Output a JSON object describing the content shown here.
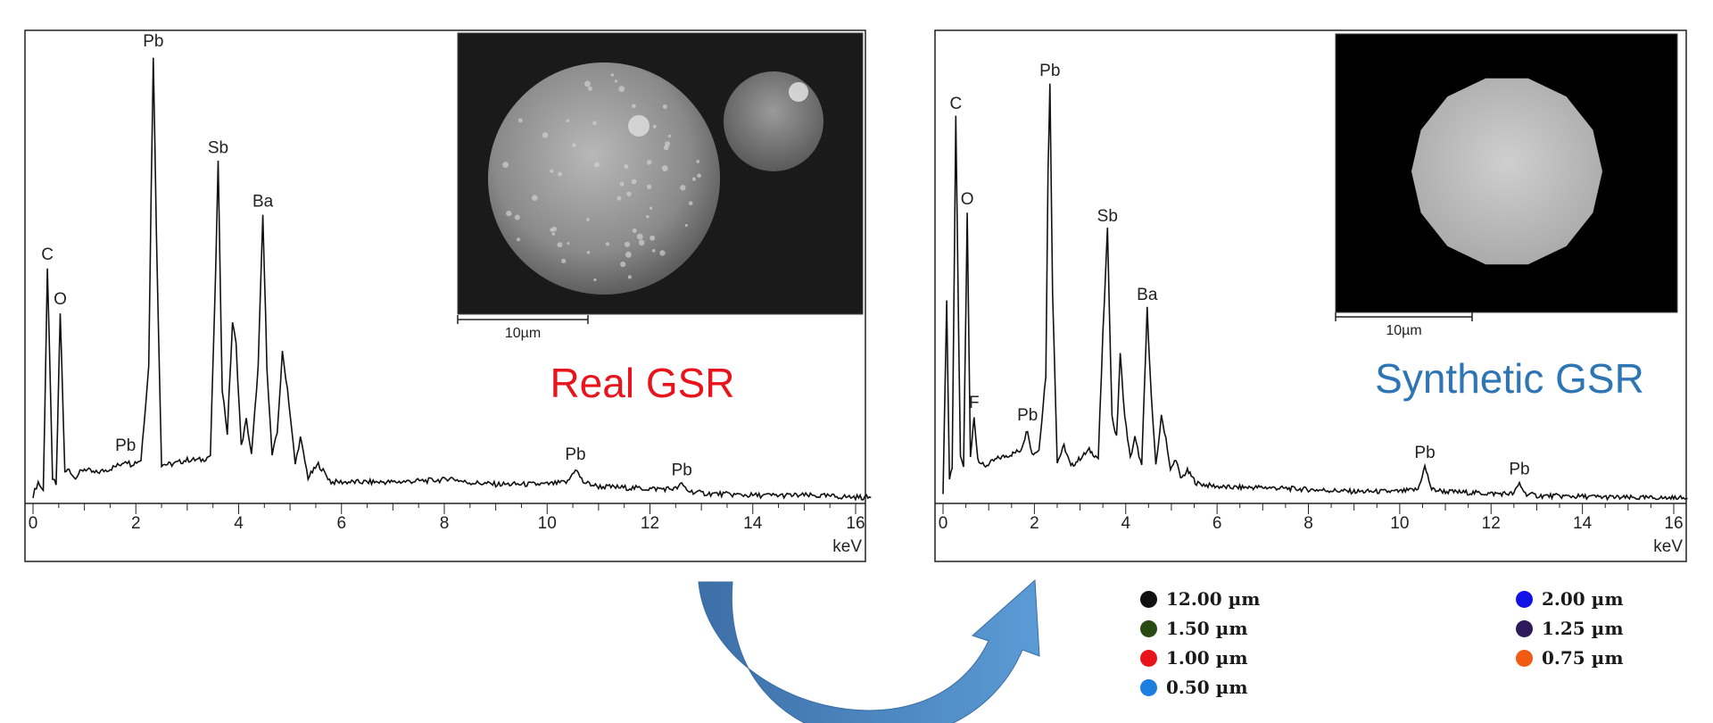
{
  "chart_data": [
    {
      "type": "line",
      "title": "Real GSR",
      "title_color": "#e8141b",
      "xlabel": "keV",
      "ylabel": "",
      "xlim": [
        0,
        16.3
      ],
      "ylim": [
        0,
        1.0
      ],
      "grid": false,
      "x_ticks": [
        "0",
        "2",
        "4",
        "6",
        "8",
        "10",
        "12",
        "14",
        "16"
      ],
      "peaks": [
        {
          "label": "C",
          "x": 0.28,
          "y": 0.52
        },
        {
          "label": "O",
          "x": 0.53,
          "y": 0.42
        },
        {
          "label": "Pb",
          "x": 1.8,
          "y": 0.09
        },
        {
          "label": "Pb",
          "x": 2.34,
          "y": 1.0
        },
        {
          "label": "Sb",
          "x": 3.6,
          "y": 0.76
        },
        {
          "label": "Ba",
          "x": 4.47,
          "y": 0.64
        },
        {
          "label": "Pb",
          "x": 10.55,
          "y": 0.07
        },
        {
          "label": "Pb",
          "x": 12.62,
          "y": 0.035
        }
      ],
      "series": [
        {
          "x": [
            0,
            0.1,
            0.2,
            0.28,
            0.38,
            0.45,
            0.53,
            0.62,
            0.7,
            0.8,
            1.0,
            1.2,
            1.5,
            1.7,
            1.8,
            1.9,
            2.1,
            2.25,
            2.3,
            2.34,
            2.4,
            2.5,
            2.7,
            3.0,
            3.3,
            3.45,
            3.55,
            3.6,
            3.68,
            3.78,
            3.88,
            3.95,
            4.05,
            4.15,
            4.25,
            4.38,
            4.47,
            4.55,
            4.65,
            4.75,
            4.85,
            4.95,
            5.1,
            5.2,
            5.35,
            5.55,
            5.8,
            6.2,
            7,
            8.0,
            8.1,
            8.4,
            9,
            10,
            10.4,
            10.55,
            10.7,
            11,
            12,
            12.5,
            12.62,
            12.75,
            13,
            14,
            15,
            16.3
          ],
          "y": [
            0.01,
            0.04,
            0.02,
            0.52,
            0.05,
            0.03,
            0.42,
            0.06,
            0.07,
            0.05,
            0.07,
            0.06,
            0.07,
            0.08,
            0.09,
            0.08,
            0.09,
            0.3,
            0.7,
            1.0,
            0.6,
            0.08,
            0.08,
            0.09,
            0.09,
            0.1,
            0.5,
            0.76,
            0.25,
            0.15,
            0.4,
            0.35,
            0.12,
            0.18,
            0.1,
            0.3,
            0.64,
            0.3,
            0.1,
            0.15,
            0.33,
            0.25,
            0.08,
            0.14,
            0.05,
            0.08,
            0.04,
            0.04,
            0.04,
            0.045,
            0.05,
            0.04,
            0.035,
            0.035,
            0.04,
            0.07,
            0.04,
            0.03,
            0.025,
            0.025,
            0.035,
            0.02,
            0.015,
            0.01,
            0.01,
            0.005
          ]
        }
      ],
      "inset": {
        "scale_label": "10µm",
        "description": "SEM image"
      }
    },
    {
      "type": "line",
      "title": "Synthetic GSR",
      "title_color": "#2e75b6",
      "xlabel": "keV",
      "ylabel": "",
      "xlim": [
        0,
        16.3
      ],
      "ylim": [
        0,
        1.0
      ],
      "grid": false,
      "x_ticks": [
        "0",
        "2",
        "4",
        "6",
        "8",
        "10",
        "12",
        "14",
        "16"
      ],
      "peaks": [
        {
          "label": "C",
          "x": 0.28,
          "y": 0.92
        },
        {
          "label": "O",
          "x": 0.53,
          "y": 0.69
        },
        {
          "label": "F",
          "x": 0.68,
          "y": 0.2
        },
        {
          "label": "Pb",
          "x": 1.85,
          "y": 0.17
        },
        {
          "label": "Pb",
          "x": 2.34,
          "y": 1.0
        },
        {
          "label": "Sb",
          "x": 3.6,
          "y": 0.65
        },
        {
          "label": "Ba",
          "x": 4.47,
          "y": 0.46
        },
        {
          "label": "Pb",
          "x": 10.55,
          "y": 0.08
        },
        {
          "label": "Pb",
          "x": 12.62,
          "y": 0.04
        }
      ],
      "series": [
        {
          "x": [
            0,
            0.08,
            0.14,
            0.2,
            0.28,
            0.38,
            0.45,
            0.53,
            0.6,
            0.68,
            0.76,
            0.9,
            1.2,
            1.5,
            1.7,
            1.85,
            1.95,
            2.1,
            2.25,
            2.3,
            2.34,
            2.4,
            2.5,
            2.65,
            2.8,
            3.0,
            3.2,
            3.4,
            3.5,
            3.6,
            3.7,
            3.8,
            3.88,
            3.98,
            4.1,
            4.2,
            4.35,
            4.47,
            4.56,
            4.66,
            4.78,
            4.88,
            4.98,
            5.1,
            5.2,
            5.35,
            5.55,
            5.8,
            6.2,
            7,
            8,
            9,
            10,
            10.4,
            10.55,
            10.7,
            11,
            12,
            12.5,
            12.62,
            12.75,
            13,
            14,
            15,
            16.3
          ],
          "y": [
            0.02,
            0.48,
            0.05,
            0.08,
            0.92,
            0.1,
            0.08,
            0.69,
            0.1,
            0.2,
            0.1,
            0.08,
            0.1,
            0.11,
            0.12,
            0.17,
            0.11,
            0.12,
            0.3,
            0.8,
            1.0,
            0.5,
            0.09,
            0.13,
            0.08,
            0.1,
            0.12,
            0.1,
            0.4,
            0.65,
            0.2,
            0.15,
            0.35,
            0.2,
            0.1,
            0.15,
            0.08,
            0.46,
            0.25,
            0.08,
            0.2,
            0.15,
            0.07,
            0.1,
            0.05,
            0.07,
            0.04,
            0.035,
            0.03,
            0.03,
            0.025,
            0.02,
            0.02,
            0.025,
            0.08,
            0.025,
            0.02,
            0.015,
            0.015,
            0.04,
            0.015,
            0.01,
            0.008,
            0.005,
            0.004
          ]
        }
      ],
      "inset": {
        "scale_label": "10µm",
        "description": "SEM image"
      }
    }
  ],
  "legend": {
    "items": [
      {
        "label": "12.00 µm",
        "color": "#111111"
      },
      {
        "label": "1.50 µm",
        "color": "#2a4a14"
      },
      {
        "label": "1.00 µm",
        "color": "#e8141b"
      },
      {
        "label": "0.50 µm",
        "color": "#1c7fe0"
      },
      {
        "label": "2.00 µm",
        "color": "#1212e6"
      },
      {
        "label": "1.25 µm",
        "color": "#2c1a5a"
      },
      {
        "label": "0.75 µm",
        "color": "#f05a12"
      }
    ]
  },
  "arrow": {
    "color": "#4a86c4",
    "icon": "curved-arrow-icon"
  }
}
